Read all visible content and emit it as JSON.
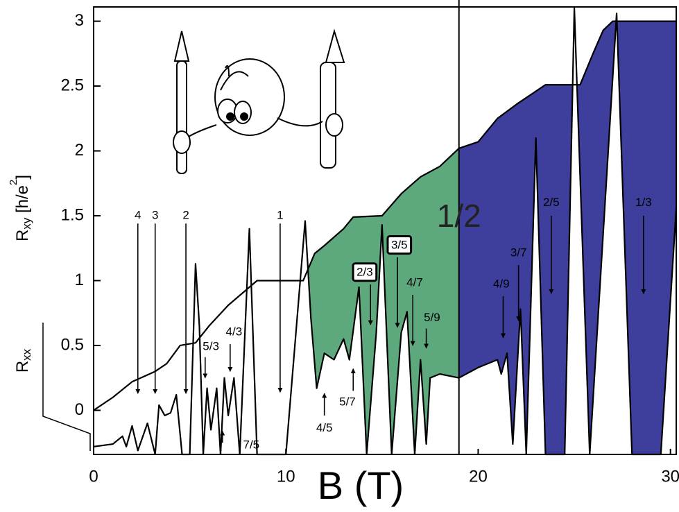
{
  "chart_data": {
    "type": "line",
    "x_label": "B (T)",
    "y_label_parts": [
      "R",
      "xy",
      " [h/e",
      "2",
      "]"
    ],
    "y2_label_parts": [
      "R",
      "xx"
    ],
    "xlim": [
      0,
      30.3
    ],
    "xticks": [
      0,
      10,
      20,
      30
    ],
    "ylim": [
      -0.34,
      3.11
    ],
    "yticks": [
      0,
      0.5,
      1,
      1.5,
      2,
      2.5,
      3
    ],
    "grid": false,
    "series": [
      {
        "color": "#000000",
        "x": [
          0,
          1,
          2,
          2.6,
          3.2,
          3.8,
          4.5,
          5.3,
          6,
          7,
          8.5,
          10.9,
          11.5,
          12,
          13,
          13.5,
          15,
          16,
          17,
          18,
          19,
          20,
          21,
          22,
          23,
          23.5,
          25.3,
          26,
          26.5,
          27,
          30.3
        ],
        "values": [
          0,
          0.1,
          0.22,
          0.26,
          0.3,
          0.36,
          0.5,
          0.52,
          0.65,
          0.81,
          1,
          1,
          1.21,
          1.27,
          1.4,
          1.49,
          1.5,
          1.67,
          1.8,
          1.88,
          2.02,
          2.07,
          2.25,
          2.36,
          2.46,
          2.51,
          2.51,
          2.76,
          2.93,
          3,
          3
        ]
      },
      {
        "color": "#000000",
        "x": [
          0,
          1,
          1.5,
          1.7,
          2,
          2.3,
          2.8,
          3.2,
          3.4,
          3.7,
          4,
          4.3,
          4.6,
          5,
          5.3,
          5.5,
          5.7,
          5.9,
          6.1,
          6.4,
          6.6,
          6.8,
          7,
          7.3,
          7.6,
          8.1,
          8.5,
          10,
          11,
          11.3,
          11.6,
          12,
          12.5,
          13,
          13.3,
          13.8,
          14.2,
          14.7,
          15,
          15.5,
          16,
          16.3,
          16.7,
          17,
          17.3,
          17.5,
          18,
          19,
          20,
          21,
          21.2,
          21.5,
          21.8,
          22.2,
          22.5,
          23,
          23.5,
          24.5,
          25,
          25.8,
          27.2,
          28,
          29.5,
          30.3
        ],
        "values": [
          -0.28,
          -0.26,
          -0.2,
          -0.28,
          -0.12,
          -0.31,
          -0.1,
          -0.34,
          0.04,
          -0.04,
          -0.02,
          0.12,
          -0.34,
          -0.34,
          1.13,
          0.65,
          -0.34,
          0.17,
          -0.15,
          0.17,
          -0.34,
          0.25,
          -0.04,
          0.25,
          -0.34,
          1.4,
          -0.34,
          -0.34,
          1.46,
          0.71,
          0.17,
          0.44,
          0.39,
          0.55,
          0.39,
          0.95,
          -0.34,
          0.6,
          1.43,
          -0.34,
          0.6,
          0.76,
          -0.34,
          0.39,
          -0.26,
          0.25,
          0.28,
          0.25,
          0.33,
          0.39,
          0.28,
          0.44,
          -0.26,
          0.78,
          -0.34,
          2.1,
          -0.34,
          -0.34,
          3.1,
          -0.34,
          3.06,
          -0.34,
          -0.34,
          1.56
        ]
      }
    ],
    "shading": [
      {
        "from": 10.9,
        "to": 19,
        "color": "#5ea87e"
      },
      {
        "from": 19,
        "to": 30.3,
        "color": "#3e3e9c"
      }
    ],
    "annotations": [
      {
        "text": "4",
        "x": 2.3,
        "y": 1.5,
        "arrow": [
          1.44,
          0.13
        ]
      },
      {
        "text": "3",
        "x": 3.2,
        "y": 1.5,
        "arrow": [
          1.44,
          0.13
        ]
      },
      {
        "text": "2",
        "x": 4.8,
        "y": 1.5,
        "arrow": [
          1.44,
          0.13
        ]
      },
      {
        "text": "1",
        "x": 9.7,
        "y": 1.5,
        "arrow": [
          1.44,
          0.14
        ]
      },
      {
        "text": "4/3",
        "x": 7.3,
        "y": 0.6,
        "arrow_x": 7.1,
        "arrow": [
          0.51,
          0.3
        ]
      },
      {
        "text": "5/3",
        "x": 6.1,
        "y": 0.49,
        "arrow_x": 5.8,
        "arrow": [
          0.41,
          0.25
        ]
      },
      {
        "text": "7/5",
        "x": 8.2,
        "y": -0.27,
        "arrow_x": 6.7,
        "arrow": [
          -0.25,
          -0.16
        ]
      },
      {
        "text": "4/5",
        "x": 12,
        "y": -0.14,
        "arrow": [
          -0.04,
          0.13
        ]
      },
      {
        "text": "5/7",
        "x": 13.2,
        "y": 0.06,
        "arrow_x": 13.5,
        "arrow": [
          0.15,
          0.32
        ]
      },
      {
        "text": "2/3",
        "x": 14.1,
        "y": 1.06,
        "boxed": true,
        "arrow_x": 14.4,
        "arrow": [
          0.97,
          0.66
        ]
      },
      {
        "text": "3/5",
        "x": 15.9,
        "y": 1.27,
        "boxed": true,
        "arrow_x": 15.8,
        "arrow": [
          1.18,
          0.64
        ]
      },
      {
        "text": "4/7",
        "x": 16.7,
        "y": 0.98,
        "arrow_x": 16.6,
        "arrow": [
          0.89,
          0.5
        ]
      },
      {
        "text": "5/9",
        "x": 17.6,
        "y": 0.71,
        "arrow_x": 17.3,
        "arrow": [
          0.63,
          0.48
        ]
      },
      {
        "text": "4/9",
        "x": 21.2,
        "y": 0.97,
        "arrow_x": 21.3,
        "arrow": [
          0.88,
          0.56
        ]
      },
      {
        "text": "3/7",
        "x": 22.1,
        "y": 1.21,
        "arrow": [
          1.12,
          0.69
        ]
      },
      {
        "text": "2/5",
        "x": 23.8,
        "y": 1.6,
        "arrow": [
          1.5,
          0.9
        ]
      },
      {
        "text": "1/3",
        "x": 28.6,
        "y": 1.6,
        "arrow": [
          1.5,
          0.9
        ]
      },
      {
        "text": "1/2",
        "x": 19,
        "y": 1.48,
        "line": true
      }
    ]
  }
}
